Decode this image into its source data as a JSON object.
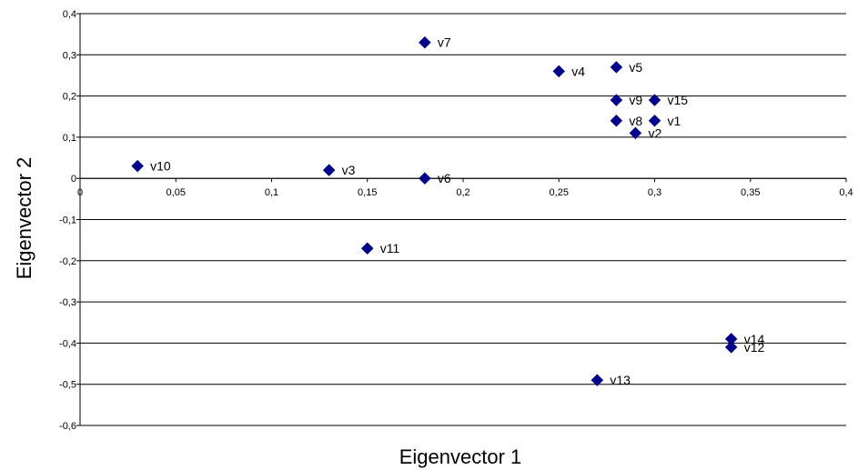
{
  "chart_data": {
    "type": "scatter",
    "title": "",
    "xlabel": "Eigenvector 1",
    "ylabel": "Eigenvector 2",
    "xlim": [
      0,
      0.4
    ],
    "ylim": [
      -0.6,
      0.4
    ],
    "x_ticks": [
      "0",
      "0,05",
      "0,1",
      "0,15",
      "0,2",
      "0,25",
      "0,3",
      "0,35",
      "0,4"
    ],
    "y_ticks": [
      "0,4",
      "0,3",
      "0,2",
      "0,1",
      "0",
      "-0,1",
      "-0,2",
      "-0,3",
      "-0,4",
      "-0,5",
      "-0,6"
    ],
    "grid": "horizontal",
    "marker_color": "#00008B",
    "points": [
      {
        "label": "v1",
        "x": 0.3,
        "y": 0.14
      },
      {
        "label": "v2",
        "x": 0.29,
        "y": 0.11
      },
      {
        "label": "v3",
        "x": 0.13,
        "y": 0.02
      },
      {
        "label": "v4",
        "x": 0.25,
        "y": 0.26
      },
      {
        "label": "v5",
        "x": 0.28,
        "y": 0.27
      },
      {
        "label": "v6",
        "x": 0.18,
        "y": 0.0
      },
      {
        "label": "v7",
        "x": 0.18,
        "y": 0.33
      },
      {
        "label": "v8",
        "x": 0.28,
        "y": 0.14
      },
      {
        "label": "v9",
        "x": 0.28,
        "y": 0.19
      },
      {
        "label": "v10",
        "x": 0.03,
        "y": 0.03
      },
      {
        "label": "v11",
        "x": 0.15,
        "y": -0.17
      },
      {
        "label": "v12",
        "x": 0.34,
        "y": -0.41
      },
      {
        "label": "v13",
        "x": 0.27,
        "y": -0.49
      },
      {
        "label": "v14",
        "x": 0.34,
        "y": -0.39
      },
      {
        "label": "v15",
        "x": 0.3,
        "y": 0.19
      }
    ]
  }
}
